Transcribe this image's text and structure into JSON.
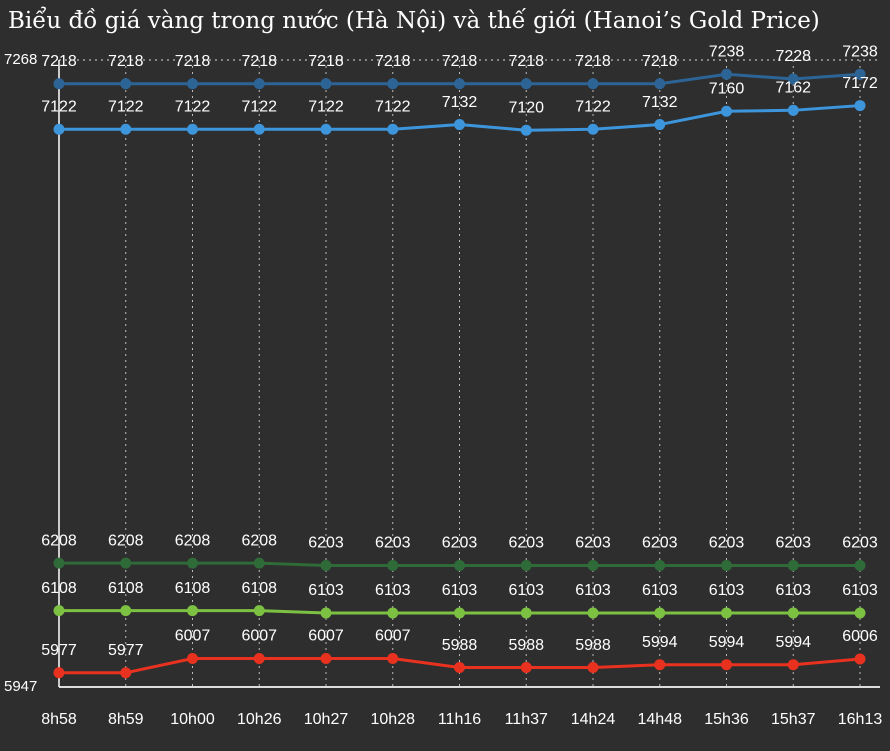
{
  "chart_data": {
    "type": "line",
    "title": "Biểu đồ giá vàng trong nước (Hà Nội) và thế giới (Hanoi’s Gold Price)",
    "categories": [
      "8h58",
      "8h59",
      "10h00",
      "10h26",
      "10h27",
      "10h28",
      "11h16",
      "11h37",
      "14h24",
      "14h48",
      "15h36",
      "15h37",
      "16h13"
    ],
    "series": [
      {
        "color": "#2c6496",
        "values": [
          7218,
          7218,
          7218,
          7218,
          7218,
          7218,
          7218,
          7218,
          7218,
          7218,
          7238,
          7228,
          7238
        ]
      },
      {
        "color": "#3d95dc",
        "values": [
          7122,
          7122,
          7122,
          7122,
          7122,
          7122,
          7132,
          7120,
          7122,
          7132,
          7160,
          7162,
          7172
        ]
      },
      {
        "color": "#2f6b38",
        "values": [
          6208,
          6208,
          6208,
          6208,
          6203,
          6203,
          6203,
          6203,
          6203,
          6203,
          6203,
          6203,
          6203
        ]
      },
      {
        "color": "#7dc142",
        "values": [
          6108,
          6108,
          6108,
          6108,
          6103,
          6103,
          6103,
          6103,
          6103,
          6103,
          6103,
          6103,
          6103
        ]
      },
      {
        "color": "#e8321f",
        "values": [
          5977,
          5977,
          6007,
          6007,
          6007,
          6007,
          5988,
          5988,
          5988,
          5994,
          5994,
          5994,
          6006
        ]
      }
    ],
    "ylim": [
      5947,
      7268
    ],
    "yticks": [
      5947,
      7268
    ],
    "grid": true
  }
}
